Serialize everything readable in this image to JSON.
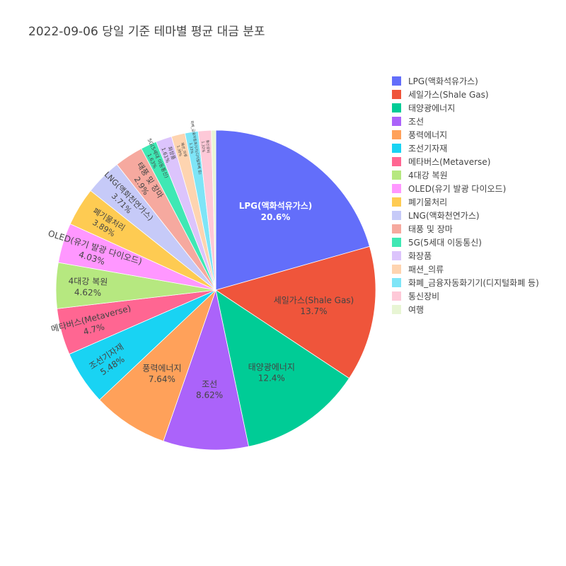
{
  "title": "2022-09-06 당일 기준 테마별 평균 대금 분포",
  "chart_data": {
    "type": "pie",
    "title": "2022-09-06 당일 기준 테마별 평균 대금 분포",
    "legend_position": "right",
    "slices": [
      {
        "label": "LPG(액화석유가스)",
        "value": 20.6,
        "text": "20.6%",
        "color": "#636efa"
      },
      {
        "label": "세일가스(Shale Gas)",
        "value": 13.7,
        "text": "13.7%",
        "color": "#ef553b"
      },
      {
        "label": "태양광에너지",
        "value": 12.4,
        "text": "12.4%",
        "color": "#00cc96"
      },
      {
        "label": "조선",
        "value": 8.62,
        "text": "8.62%",
        "color": "#ab63fa"
      },
      {
        "label": "풍력에너지",
        "value": 7.64,
        "text": "7.64%",
        "color": "#ffa15a"
      },
      {
        "label": "조선기자재",
        "value": 5.48,
        "text": "5.48%",
        "color": "#19d3f3"
      },
      {
        "label": "메타버스(Metaverse)",
        "value": 4.7,
        "text": "4.7%",
        "color": "#ff6692"
      },
      {
        "label": "4대강 복원",
        "value": 4.62,
        "text": "4.62%",
        "color": "#b6e880"
      },
      {
        "label": "OLED(유기 발광 다이오드)",
        "value": 4.03,
        "text": "4.03%",
        "color": "#ff97ff"
      },
      {
        "label": "폐기물처리",
        "value": 3.89,
        "text": "3.89%",
        "color": "#fecb52"
      },
      {
        "label": "LNG(액화천연가스)",
        "value": 3.71,
        "text": "3.71%",
        "color": "#c6caf8"
      },
      {
        "label": "태풍 및 장마",
        "value": 2.9,
        "text": "2.9%",
        "color": "#f6a99f"
      },
      {
        "label": "5G(5세대 이동통신)",
        "value": 1.63,
        "text": "1.63%",
        "color": "#3fe8b4"
      },
      {
        "label": "화장품",
        "value": 1.61,
        "text": "1.61%",
        "color": "#dcc4fc"
      },
      {
        "label": "패션_의류",
        "value": 1.38,
        "text": "1.38%",
        "color": "#fed4b0"
      },
      {
        "label": "화폐_금융자동화기기(디지털화폐 등)",
        "value": 1.33,
        "text": "1.33%",
        "color": "#7ee5f7"
      },
      {
        "label": "통신장비",
        "value": 1.32,
        "text": "1.32%",
        "color": "#fec9d8"
      },
      {
        "label": "여행",
        "value": 0.44,
        "text": "",
        "color": "#e8f5d4"
      }
    ]
  }
}
